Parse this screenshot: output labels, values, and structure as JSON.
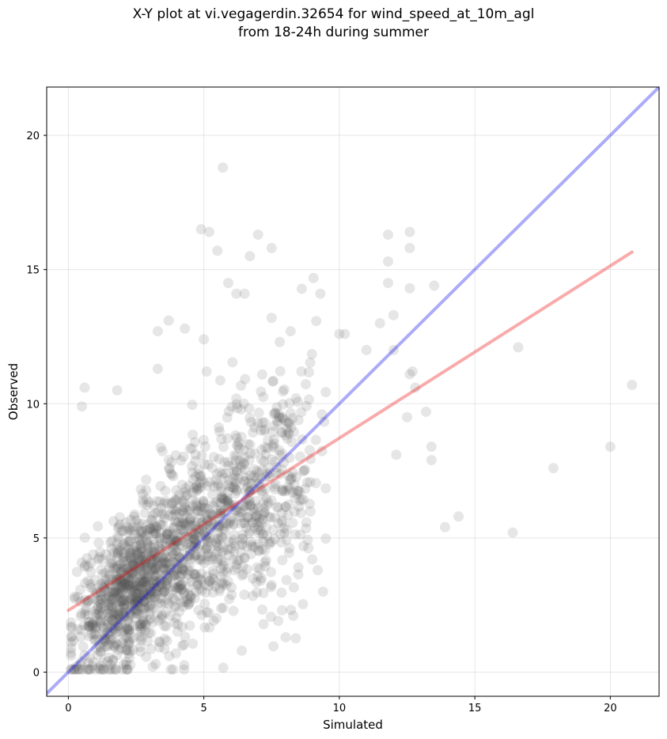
{
  "chart_data": {
    "type": "scatter",
    "title_line1": "X-Y plot at vi.vegagerdin.32654 for wind_speed_at_10m_agl",
    "title_line2": "from 18-24h during summer",
    "xlabel": "Simulated",
    "ylabel": "Observed",
    "xlim": [
      -0.8,
      21.8
    ],
    "ylim": [
      -0.9,
      21.8
    ],
    "xticks": [
      0,
      5,
      10,
      15,
      20
    ],
    "yticks": [
      0,
      5,
      10,
      15,
      20
    ],
    "grid": true,
    "identity_line": {
      "color": "#0000ee",
      "from": [
        -0.8,
        -0.8
      ],
      "to": [
        21.8,
        21.8
      ]
    },
    "fit_line": {
      "color": "#ee0000",
      "from": [
        0.0,
        2.3
      ],
      "to": [
        20.8,
        15.65
      ]
    },
    "point_color": "#555555",
    "highlighted_points": {
      "x": [
        5.7,
        4.9,
        5.2,
        5.5,
        7.0,
        6.7,
        7.5,
        5.9,
        6.2,
        6.5,
        11.8,
        12.6,
        11.8,
        12.6,
        13.5,
        12.6,
        11.8,
        12.0,
        10.0,
        10.2,
        11.5,
        12.0,
        11.0,
        12.7,
        12.6,
        12.8,
        13.2,
        13.4,
        13.4,
        12.5,
        12.1,
        16.6,
        20.8,
        20.0,
        17.9,
        13.9,
        14.4,
        16.4,
        0.5,
        0.6,
        1.8,
        3.3,
        3.3,
        3.7,
        4.3,
        5.0,
        5.1,
        7.5,
        7.8,
        8.2,
        9.3,
        8.6,
        8.3,
        9.0,
        9.4,
        9.2
      ],
      "y": [
        18.8,
        16.5,
        16.4,
        15.7,
        16.3,
        15.5,
        15.8,
        14.5,
        14.1,
        14.1,
        16.3,
        16.4,
        15.3,
        15.8,
        14.4,
        14.3,
        14.5,
        13.3,
        12.6,
        12.6,
        13.0,
        12.0,
        12.0,
        11.2,
        11.1,
        10.6,
        9.7,
        8.4,
        7.9,
        9.5,
        8.1,
        12.1,
        10.7,
        8.4,
        7.6,
        5.4,
        5.8,
        5.2,
        9.9,
        10.6,
        10.5,
        11.3,
        12.7,
        13.1,
        12.8,
        12.4,
        11.2,
        13.2,
        12.3,
        12.7,
        14.1,
        11.2,
        2.1,
        4.2,
        3.0,
        3.8
      ]
    },
    "dense_cloud": {
      "seed": 7,
      "x_range": [
        0.1,
        9.5
      ],
      "y_range": [
        0.1,
        16.5
      ]
    }
  }
}
